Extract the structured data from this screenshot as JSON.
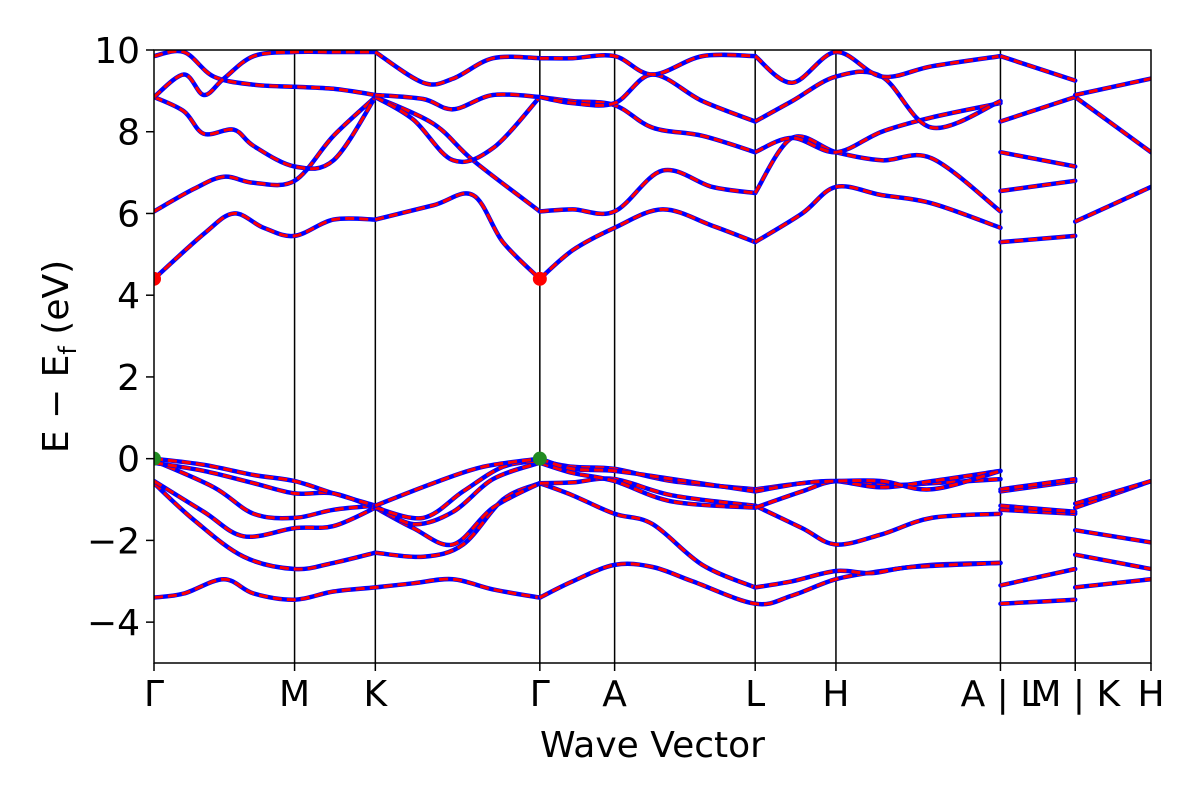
{
  "chart_data": {
    "type": "line",
    "xlabel": "Wave Vector",
    "ylabel": "E − E",
    "ylabel_sub": "f",
    "ylabel_unit": "(eV)",
    "ylim": [
      -5,
      10
    ],
    "yticks": [
      -4,
      -2,
      0,
      2,
      4,
      6,
      8,
      10
    ],
    "ytick_labels": [
      "−4",
      "−2",
      "0",
      "2",
      "4",
      "6",
      "8",
      "10"
    ],
    "xlim": [
      0,
      10
    ],
    "kpoint_labels": [
      "Γ",
      "M",
      "K",
      "Γ",
      "A",
      "L",
      "H",
      "A | L",
      "M | K",
      "H"
    ],
    "kpoint_positions": [
      0,
      1.41,
      2.22,
      3.87,
      4.62,
      6.03,
      6.84,
      8.49,
      9.24,
      10.0
    ],
    "segment_breaks": [
      8.49,
      9.24
    ],
    "colors": {
      "line_primary": "#0000ff",
      "line_overlay": "#ff0000",
      "cbm_marker": "#ff0000",
      "vbm_marker": "#228b22"
    },
    "cbm": {
      "x": [
        0,
        3.87
      ],
      "y": 4.4
    },
    "vbm": {
      "x": [
        0,
        3.87
      ],
      "y": 0.0
    },
    "grid": false,
    "bands": [
      {
        "x": [
          0,
          0.3,
          0.7,
          1.0,
          1.41,
          1.8,
          2.22,
          2.6,
          3.0,
          3.4,
          3.87
        ],
        "y": [
          -3.4,
          -3.3,
          -2.95,
          -3.3,
          -3.45,
          -3.25,
          -3.15,
          -3.05,
          -2.95,
          -3.2,
          -3.4
        ]
      },
      {
        "x": [
          3.87,
          4.2,
          4.62,
          5.0,
          5.4,
          6.03,
          6.4,
          6.84,
          7.3,
          7.8,
          8.49
        ],
        "y": [
          -3.4,
          -3.0,
          -2.6,
          -2.65,
          -3.0,
          -3.55,
          -3.35,
          -2.95,
          -2.75,
          -2.6,
          -2.55
        ]
      },
      {
        "x": [
          8.49,
          9.24
        ],
        "y": [
          -3.55,
          -3.45
        ]
      },
      {
        "x": [
          9.24,
          10.0
        ],
        "y": [
          -3.15,
          -2.95
        ]
      },
      {
        "x": [
          0,
          0.4,
          0.9,
          1.41,
          1.8,
          2.22
        ],
        "y": [
          -0.6,
          -1.5,
          -2.4,
          -2.7,
          -2.55,
          -2.3
        ]
      },
      {
        "x": [
          2.22,
          2.7,
          3.1,
          3.5,
          3.87
        ],
        "y": [
          -2.3,
          -2.4,
          -2.1,
          -1.0,
          -0.6
        ]
      },
      {
        "x": [
          3.87,
          4.2,
          4.62,
          5.0,
          5.5,
          6.03
        ],
        "y": [
          -0.6,
          -0.9,
          -1.35,
          -1.6,
          -2.6,
          -3.15
        ]
      },
      {
        "x": [
          6.03,
          6.4,
          6.84,
          7.2,
          7.6,
          8.49
        ],
        "y": [
          -3.15,
          -3.0,
          -2.75,
          -2.8,
          -2.65,
          -2.55
        ]
      },
      {
        "x": [
          8.49,
          9.24
        ],
        "y": [
          -3.1,
          -2.7
        ]
      },
      {
        "x": [
          9.24,
          10.0
        ],
        "y": [
          -2.35,
          -2.7
        ]
      },
      {
        "x": [
          0,
          0.5,
          0.9,
          1.41,
          1.8,
          2.22
        ],
        "y": [
          -0.55,
          -1.3,
          -1.9,
          -1.7,
          -1.65,
          -1.2
        ]
      },
      {
        "x": [
          2.22,
          2.6,
          3.0,
          3.4,
          3.87
        ],
        "y": [
          -1.2,
          -1.7,
          -2.1,
          -1.2,
          -0.6
        ]
      },
      {
        "x": [
          3.87,
          4.2,
          4.62,
          5.2,
          6.03
        ],
        "y": [
          -0.6,
          -0.58,
          -0.5,
          -0.9,
          -1.15
        ]
      },
      {
        "x": [
          6.03,
          6.5,
          6.84,
          7.3,
          7.8,
          8.49
        ],
        "y": [
          -1.15,
          -1.7,
          -2.1,
          -1.85,
          -1.45,
          -1.35
        ]
      },
      {
        "x": [
          8.49,
          9.24
        ],
        "y": [
          -1.25,
          -1.35
        ]
      },
      {
        "x": [
          9.24,
          10.0
        ],
        "y": [
          -1.75,
          -2.05
        ]
      },
      {
        "x": [
          0,
          0.6,
          1.0,
          1.41,
          1.8,
          2.22
        ],
        "y": [
          -0.05,
          -0.7,
          -1.35,
          -1.45,
          -1.25,
          -1.15
        ]
      },
      {
        "x": [
          2.22,
          2.6,
          3.0,
          3.4,
          3.87
        ],
        "y": [
          -1.15,
          -1.6,
          -1.3,
          -0.5,
          -0.1
        ]
      },
      {
        "x": [
          3.87,
          4.2,
          4.62,
          5.2,
          6.03
        ],
        "y": [
          -0.1,
          -0.35,
          -0.55,
          -1.05,
          -1.2
        ]
      },
      {
        "x": [
          6.03,
          6.5,
          6.84,
          7.3,
          7.8,
          8.49
        ],
        "y": [
          -1.2,
          -0.8,
          -0.55,
          -0.65,
          -0.6,
          -0.5
        ]
      },
      {
        "x": [
          8.49,
          9.24
        ],
        "y": [
          -1.15,
          -1.3
        ]
      },
      {
        "x": [
          9.24,
          10.0
        ],
        "y": [
          -1.2,
          -0.55
        ]
      },
      {
        "x": [
          0,
          0.5,
          1.0,
          1.41,
          1.8,
          2.22
        ],
        "y": [
          -0.1,
          -0.3,
          -0.6,
          -0.85,
          -0.85,
          -1.2
        ]
      },
      {
        "x": [
          2.22,
          2.7,
          3.1,
          3.5,
          3.87
        ],
        "y": [
          -1.2,
          -1.45,
          -0.8,
          -0.2,
          -0.05
        ]
      },
      {
        "x": [
          3.87,
          4.2,
          4.62,
          5.2,
          6.03
        ],
        "y": [
          -0.05,
          -0.2,
          -0.25,
          -0.55,
          -0.75
        ]
      },
      {
        "x": [
          6.03,
          6.5,
          6.84,
          7.3,
          7.8,
          8.49
        ],
        "y": [
          -0.75,
          -0.6,
          -0.55,
          -0.7,
          -0.55,
          -0.3
        ]
      },
      {
        "x": [
          8.49,
          9.24
        ],
        "y": [
          -0.8,
          -0.55
        ]
      },
      {
        "x": [
          9.24,
          10.0
        ],
        "y": [
          -1.1,
          -0.55
        ]
      },
      {
        "x": [
          0,
          0.5,
          1.0,
          1.41,
          1.8,
          2.22
        ],
        "y": [
          0.0,
          -0.15,
          -0.4,
          -0.55,
          -0.85,
          -1.15
        ]
      },
      {
        "x": [
          2.22,
          2.8,
          3.3,
          3.87
        ],
        "y": [
          -1.15,
          -0.6,
          -0.2,
          0.0
        ]
      },
      {
        "x": [
          3.87,
          4.2,
          4.62,
          5.2,
          6.03
        ],
        "y": [
          0.0,
          -0.25,
          -0.3,
          -0.5,
          -0.8
        ]
      },
      {
        "x": [
          6.03,
          6.5,
          6.84,
          7.3,
          7.8,
          8.49
        ],
        "y": [
          -0.8,
          -0.6,
          -0.55,
          -0.55,
          -0.75,
          -0.3
        ]
      },
      {
        "x": [
          8.49,
          9.24
        ],
        "y": [
          -0.75,
          -0.5
        ]
      },
      {
        "x": [
          0,
          0.5,
          0.8,
          1.1,
          1.41,
          1.8,
          2.22
        ],
        "y": [
          4.4,
          5.5,
          6.0,
          5.65,
          5.45,
          5.85,
          5.85
        ]
      },
      {
        "x": [
          2.22,
          2.8,
          3.2,
          3.5,
          3.87
        ],
        "y": [
          5.85,
          6.2,
          6.45,
          5.3,
          4.4
        ]
      },
      {
        "x": [
          3.87,
          4.2,
          4.62,
          5.1,
          5.6,
          6.03
        ],
        "y": [
          4.4,
          5.1,
          5.65,
          6.1,
          5.7,
          5.3
        ]
      },
      {
        "x": [
          6.03,
          6.5,
          6.84,
          7.3,
          7.8,
          8.49
        ],
        "y": [
          5.3,
          6.0,
          6.65,
          6.45,
          6.25,
          5.65
        ]
      },
      {
        "x": [
          8.49,
          9.24
        ],
        "y": [
          5.3,
          5.45
        ]
      },
      {
        "x": [
          9.24,
          10.0
        ],
        "y": [
          5.8,
          6.65
        ]
      },
      {
        "x": [
          0,
          0.4,
          0.7,
          1.0,
          1.41,
          1.8,
          2.22
        ],
        "y": [
          6.05,
          6.6,
          6.9,
          6.75,
          6.8,
          7.9,
          8.85
        ]
      },
      {
        "x": [
          2.22,
          2.8,
          3.2,
          3.87
        ],
        "y": [
          8.85,
          8.2,
          7.3,
          6.05
        ]
      },
      {
        "x": [
          3.87,
          4.2,
          4.62,
          5.1,
          5.6,
          6.03
        ],
        "y": [
          6.05,
          6.1,
          6.05,
          7.05,
          6.65,
          6.5
        ]
      },
      {
        "x": [
          6.03,
          6.4,
          6.84,
          7.3,
          7.8,
          8.49
        ],
        "y": [
          6.5,
          7.85,
          7.5,
          7.3,
          7.35,
          6.05
        ]
      },
      {
        "x": [
          8.49,
          9.24
        ],
        "y": [
          6.55,
          6.8
        ]
      },
      {
        "x": [
          9.24,
          10.0
        ],
        "y": [
          8.85,
          7.5
        ]
      },
      {
        "x": [
          0,
          0.3,
          0.5,
          0.8,
          1.0,
          1.41,
          1.8,
          2.22
        ],
        "y": [
          8.85,
          8.5,
          7.95,
          8.05,
          7.65,
          7.15,
          7.3,
          8.85
        ]
      },
      {
        "x": [
          2.22,
          2.6,
          3.0,
          3.4,
          3.87
        ],
        "y": [
          8.85,
          8.3,
          7.3,
          7.6,
          8.85
        ]
      },
      {
        "x": [
          3.87,
          4.2,
          4.62,
          5.0,
          5.5,
          6.03
        ],
        "y": [
          8.85,
          8.75,
          8.65,
          8.1,
          7.9,
          7.5
        ]
      },
      {
        "x": [
          6.03,
          6.4,
          6.84,
          7.3,
          7.8,
          8.49
        ],
        "y": [
          7.5,
          7.85,
          7.5,
          8.0,
          8.35,
          8.7
        ]
      },
      {
        "x": [
          8.49,
          9.24
        ],
        "y": [
          7.5,
          7.15
        ]
      },
      {
        "x": [
          0,
          0.3,
          0.6,
          1.0,
          1.41,
          1.8,
          2.22
        ],
        "y": [
          9.85,
          9.95,
          9.35,
          9.15,
          9.1,
          9.05,
          8.9
        ]
      },
      {
        "x": [
          2.22,
          2.7,
          3.0,
          3.4,
          3.87
        ],
        "y": [
          8.9,
          8.8,
          8.55,
          8.9,
          8.85
        ]
      },
      {
        "x": [
          3.87,
          4.2,
          4.62,
          5.0,
          5.5,
          6.03
        ],
        "y": [
          8.85,
          8.7,
          8.7,
          9.4,
          8.75,
          8.25
        ]
      },
      {
        "x": [
          6.03,
          6.4,
          6.84,
          7.3,
          7.8,
          8.49
        ],
        "y": [
          8.25,
          8.75,
          9.35,
          9.35,
          8.1,
          8.75
        ]
      },
      {
        "x": [
          8.49,
          9.24
        ],
        "y": [
          8.25,
          8.85
        ]
      },
      {
        "x": [
          9.24,
          10.0
        ],
        "y": [
          8.9,
          9.3
        ]
      },
      {
        "x": [
          0,
          0.3,
          0.5,
          0.7,
          1.0,
          1.41,
          1.8,
          2.22
        ],
        "y": [
          8.85,
          9.4,
          8.9,
          9.3,
          9.85,
          9.95,
          9.95,
          9.95
        ]
      },
      {
        "x": [
          2.22,
          2.7,
          3.0,
          3.4,
          3.87
        ],
        "y": [
          9.95,
          9.2,
          9.3,
          9.8,
          9.8
        ]
      },
      {
        "x": [
          3.87,
          4.2,
          4.62,
          5.0,
          5.5,
          6.03
        ],
        "y": [
          9.8,
          9.8,
          9.85,
          9.4,
          9.85,
          9.85
        ]
      },
      {
        "x": [
          6.03,
          6.4,
          6.84,
          7.3,
          7.8,
          8.49
        ],
        "y": [
          9.85,
          9.2,
          9.95,
          9.35,
          9.6,
          9.85
        ]
      },
      {
        "x": [
          8.49,
          9.24
        ],
        "y": [
          9.85,
          9.25
        ]
      }
    ]
  }
}
